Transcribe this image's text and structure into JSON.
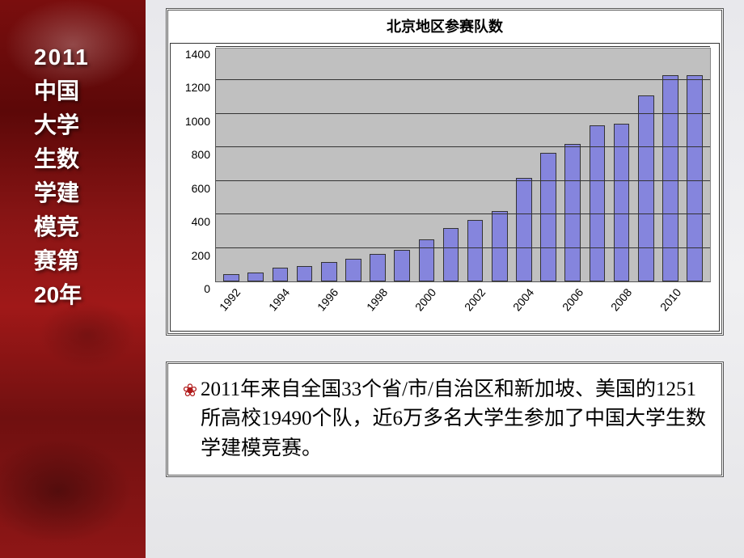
{
  "sidebar": {
    "line1": "2011",
    "lines": [
      "中国",
      "大学",
      "生数",
      "学建",
      "模竞",
      "赛第",
      "20年"
    ],
    "text_color": "#ffffff",
    "bg_gradient": [
      "#7a0e0e",
      "#a01818"
    ]
  },
  "chart": {
    "type": "bar",
    "title": "北京地区参赛队数",
    "title_fontsize": 18,
    "background_color": "#c0c0c0",
    "grid_color": "#333333",
    "bar_color": "#8585dd",
    "bar_border": "#333333",
    "ylim": [
      0,
      1400
    ],
    "ytick_step": 200,
    "yticks": [
      0,
      200,
      400,
      600,
      800,
      1000,
      1200,
      1400
    ],
    "years": [
      1992,
      1993,
      1994,
      1995,
      1996,
      1997,
      1998,
      1999,
      2000,
      2001,
      2002,
      2003,
      2004,
      2005,
      2006,
      2007,
      2008,
      2009,
      2010,
      2011
    ],
    "x_labels_shown": [
      1992,
      1994,
      1996,
      1998,
      2000,
      2002,
      2004,
      2006,
      2008,
      2010
    ],
    "values": [
      45,
      55,
      80,
      90,
      115,
      135,
      165,
      190,
      250,
      320,
      365,
      420,
      620,
      770,
      820,
      930,
      940,
      1110,
      1230,
      1230
    ],
    "bar_width": 0.65,
    "label_fontsize": 14
  },
  "body_text": {
    "bullet": "❀",
    "bullet_color": "#b01818",
    "text": "2011年来自全国33个省/市/自治区和新加坡、美国的1251所高校19490个队，近6万多名大学生参加了中国大学生数学建模竞赛。",
    "fontsize": 25,
    "color": "#000000"
  }
}
